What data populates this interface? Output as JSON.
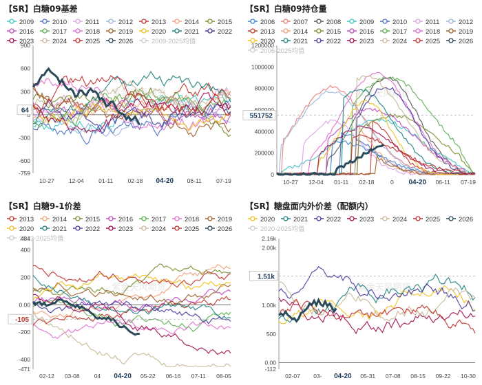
{
  "colors": {
    "2006": "#3f7fd0",
    "2007": "#e8807a",
    "2008": "#555555",
    "2009": "#40c4c0",
    "2010": "#4a6fc0",
    "2011": "#d9a6e0",
    "2012": "#9ab5dd",
    "2013": "#c0392b",
    "2014": "#f2a07a",
    "2015": "#7a8f30",
    "2016": "#c04bc0",
    "2017": "#5ab050",
    "2018": "#e070d0",
    "2019": "#a0602a",
    "2020": "#f0c020",
    "2021": "#208080",
    "2022": "#4a3aa0",
    "2023": "#a01050",
    "2024": "#c8b898",
    "2025": "#c03030",
    "2026": "#2a4a5a",
    "avg": "#cccccc"
  },
  "watermark": "紫金天风期货",
  "panels": [
    {
      "id": "basis",
      "title": "【SR】白糖09基差",
      "legend_rows": [
        [
          "2009",
          "2010",
          "2011",
          "2012",
          "2013",
          "2014",
          "2015"
        ],
        [
          "2016",
          "2017",
          "2018",
          "2019",
          "2020",
          "2021",
          "2022"
        ],
        [
          "2023",
          "2024",
          "2025",
          "2026",
          "avg"
        ]
      ],
      "legend_avg_label": "2009-2025均值",
      "y_labels": [
        "900",
        "600",
        "300",
        "0",
        "-300",
        "-600",
        "-759"
      ],
      "y_values": [
        900,
        600,
        300,
        0,
        -300,
        -600,
        -759
      ],
      "y_range": [
        -759,
        900
      ],
      "badge": "64",
      "badge_value": 64,
      "x_labels": [
        "10-27",
        "12-04",
        "01-11",
        "02-18",
        "04-20",
        "06-11",
        "07-19"
      ],
      "x_highlight": "04-20",
      "chart_data": {
        "type": "line",
        "title": "【SR】白糖09基差",
        "ylim": [
          -759,
          900
        ],
        "x": [
          "10-27",
          "12-04",
          "01-11",
          "02-18",
          "04-20",
          "06-11",
          "07-19"
        ],
        "current_value": 64,
        "series_note": "daily basis by contract year 2009-2026 plus 2009-2025 average"
      }
    },
    {
      "id": "oi",
      "title": "【SR】白糖09持仓量",
      "legend_rows": [
        [
          "2006",
          "2007",
          "2008",
          "2009",
          "2010",
          "2011",
          "2012"
        ],
        [
          "2013",
          "2014",
          "2015",
          "2016",
          "2017",
          "2018",
          "2019"
        ],
        [
          "2020",
          "2021",
          "2022",
          "2023",
          "2024",
          "2025",
          "2026"
        ],
        [
          "avg"
        ]
      ],
      "legend_avg_label": "2006-2025均值",
      "y_labels": [
        "1200000",
        "1000000",
        "800000",
        "600000",
        "400000",
        "200000",
        "0"
      ],
      "y_values": [
        1200000,
        1000000,
        800000,
        600000,
        400000,
        200000,
        0
      ],
      "y_range": [
        0,
        1200000
      ],
      "badge": "551752",
      "badge_value": 551752,
      "x_labels": [
        "10-27",
        "12-04",
        "01-11",
        "02-18",
        "0",
        "04-20",
        "06-11",
        "07-19"
      ],
      "x_highlight": "04-20",
      "chart_data": {
        "type": "line",
        "title": "【SR】白糖09持仓量",
        "ylim": [
          0,
          1200000
        ],
        "x": [
          "10-27",
          "12-04",
          "01-11",
          "02-18",
          "04-20",
          "06-11",
          "07-19"
        ],
        "current_value": 551752
      }
    },
    {
      "id": "spread",
      "title": "【SR】白糖9-1价差",
      "legend_rows": [
        [
          "2013",
          "2014",
          "2015",
          "2016",
          "2017",
          "2018",
          "2019"
        ],
        [
          "2020",
          "2021",
          "2022",
          "2023",
          "2024",
          "2025",
          "2026"
        ],
        [
          "avg"
        ]
      ],
      "legend_avg_label": "2013-2025均值",
      "y_labels": [
        "484",
        "400",
        "200",
        "0.00",
        "-200",
        "-400",
        "-471"
      ],
      "y_values": [
        484,
        400,
        200,
        0,
        -200,
        -400,
        -471
      ],
      "y_range": [
        -471,
        484
      ],
      "badge": "-105",
      "badge_value": -105,
      "x_labels": [
        "02-12",
        "03-08",
        "04",
        "04-20",
        "05-22",
        "06-16",
        "07-11",
        "08-05"
      ],
      "x_highlight": "04-20",
      "chart_data": {
        "type": "line",
        "title": "【SR】白糖9-1价差",
        "ylim": [
          -471,
          484
        ],
        "x": [
          "02-12",
          "03-08",
          "04-20",
          "05-22",
          "06-16",
          "07-11",
          "08-05"
        ],
        "current_value": -105
      }
    },
    {
      "id": "importspread",
      "title": "【SR】糖盘面内外价差（配额内）",
      "legend_rows": [
        [
          "2020",
          "2021",
          "2022",
          "2023",
          "2024",
          "2025",
          "2026"
        ],
        [
          "avg"
        ]
      ],
      "legend_avg_label": "2020-2025均值",
      "y_labels": [
        "2.16k",
        "2.00k",
        "1.50k",
        "1.00k",
        "500",
        "0.00",
        "-112"
      ],
      "y_values": [
        2160,
        2000,
        1500,
        1000,
        500,
        0,
        -112
      ],
      "y_range": [
        -112,
        2160
      ],
      "badge": "1.51k",
      "badge_value": 1510,
      "x_labels": [
        "02-07",
        "03-",
        "04-20",
        "05-31",
        "07-08",
        "08-15",
        "09-22",
        "10-30"
      ],
      "x_highlight": "04-20",
      "chart_data": {
        "type": "line",
        "title": "【SR】糖盘面内外价差（配额内）",
        "ylim": [
          -112,
          2160
        ],
        "x": [
          "02-07",
          "04-20",
          "05-31",
          "07-08",
          "08-15",
          "09-22",
          "10-30"
        ],
        "current_value": 1510
      }
    }
  ]
}
